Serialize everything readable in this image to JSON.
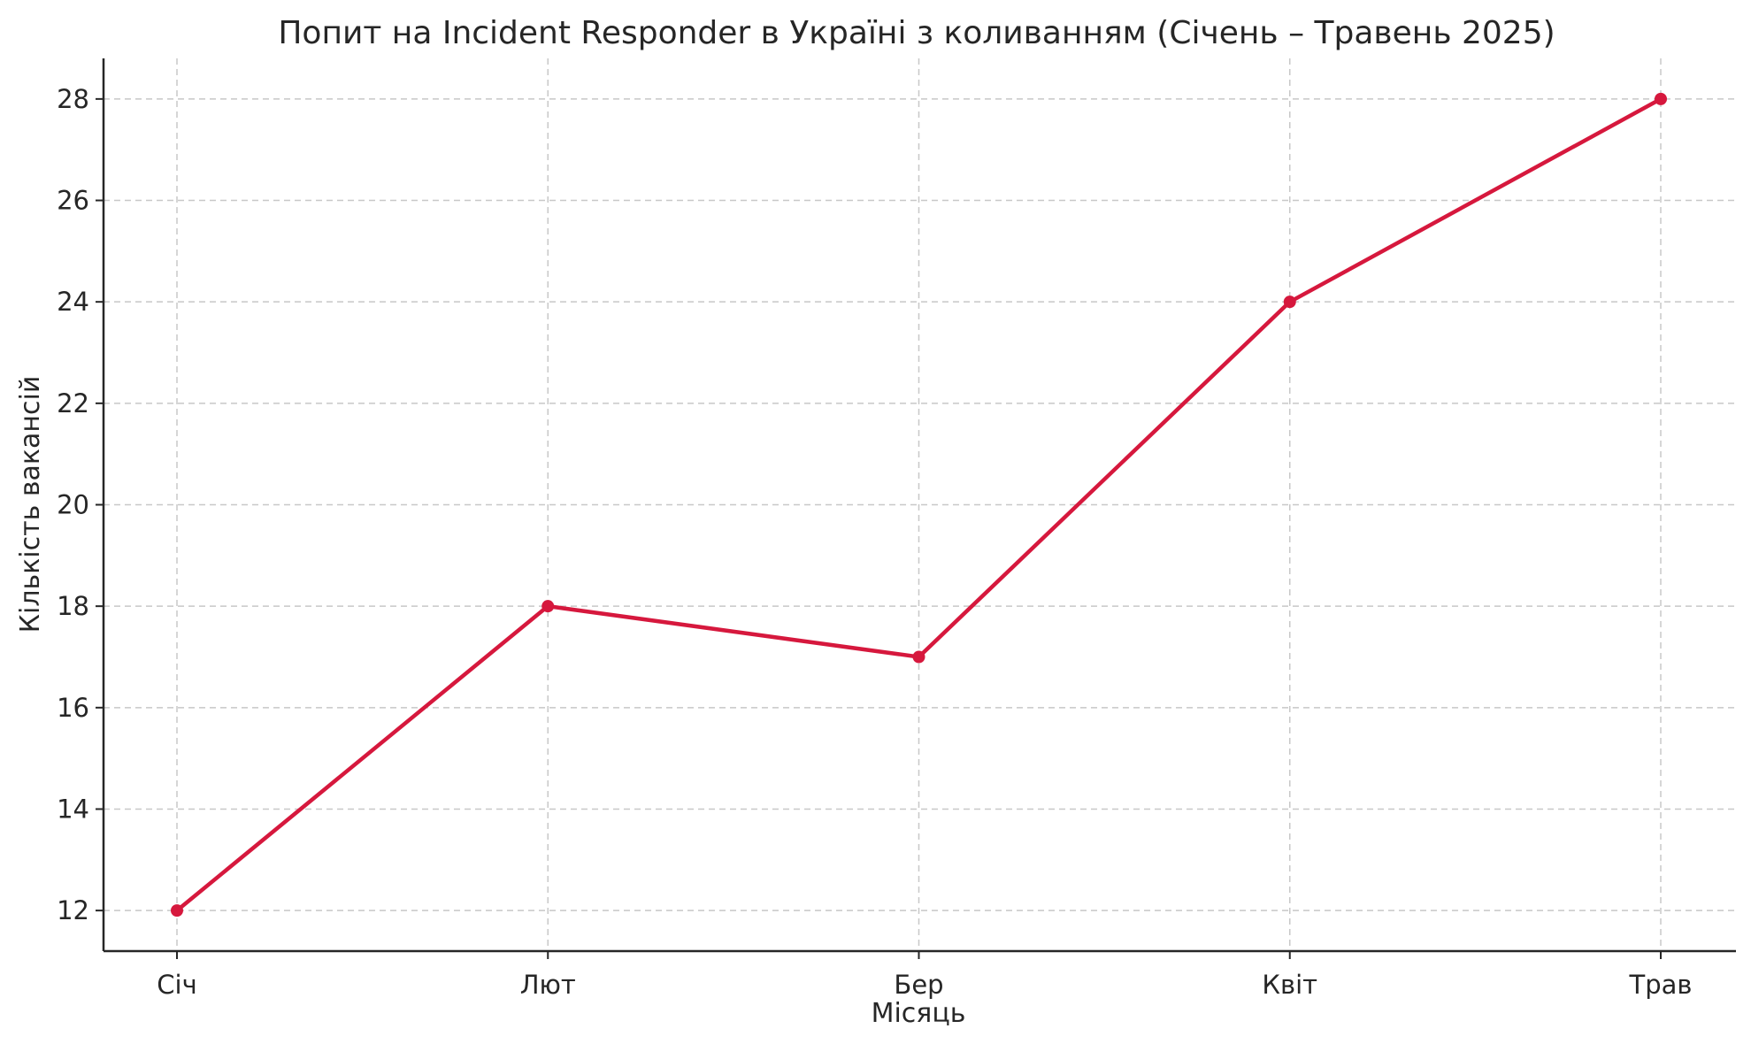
{
  "chart_data": {
    "type": "line",
    "title": "Попит на Incident Responder в Україні з коливанням (Січень – Травень 2025)",
    "xlabel": "Місяць",
    "ylabel": "Кількість вакансій",
    "categories": [
      "Січ",
      "Лют",
      "Бер",
      "Квіт",
      "Трав"
    ],
    "series": [
      {
        "values": [
          12,
          18,
          17,
          24,
          28
        ],
        "color": "#d6183d",
        "marker": "circle"
      }
    ],
    "ylim": [
      11.2,
      28.8
    ],
    "yticks": [
      12,
      14,
      16,
      18,
      20,
      22,
      24,
      26,
      28
    ],
    "grid": true,
    "grid_style": "dashed",
    "legend": "none"
  }
}
